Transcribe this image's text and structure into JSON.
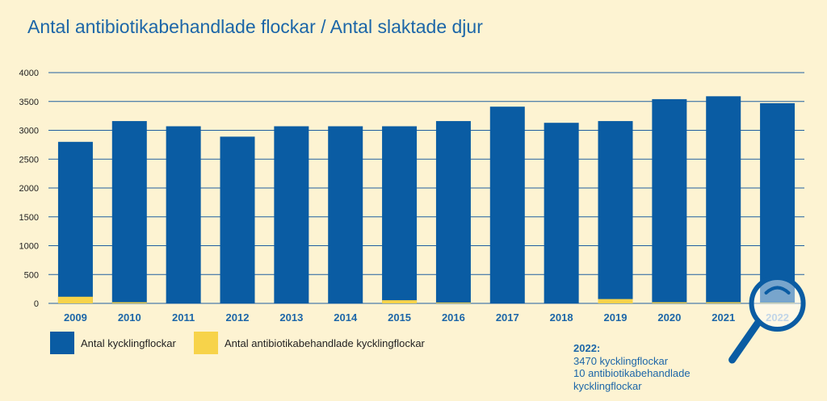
{
  "title": "Antal antibiotikabehandlade flockar / Antal slaktade djur",
  "colors": {
    "primary": "#0a5ca3",
    "secondary": "#f7d34a",
    "text_blue": "#1c66a8",
    "background": "#fdf3d2"
  },
  "chart_data": {
    "type": "bar",
    "stacked": true,
    "categories": [
      "2009",
      "2010",
      "2011",
      "2012",
      "2013",
      "2014",
      "2015",
      "2016",
      "2017",
      "2018",
      "2019",
      "2020",
      "2021",
      "2022"
    ],
    "series": [
      {
        "name": "Antal kycklingflockar",
        "color": "#0a5ca3",
        "values": [
          2800,
          3160,
          3070,
          2890,
          3070,
          3070,
          3070,
          3160,
          3410,
          3130,
          3160,
          3540,
          3590,
          3470
        ]
      },
      {
        "name": "Antal antibiotikabehandlade kycklingflockar",
        "color": "#f7d34a",
        "values": [
          115,
          20,
          0,
          0,
          0,
          0,
          55,
          15,
          0,
          0,
          75,
          20,
          20,
          10
        ]
      }
    ],
    "highlight": "2022",
    "ylim": [
      0,
      4000
    ],
    "yticks": [
      0,
      500,
      1000,
      1500,
      2000,
      2500,
      3000,
      3500,
      4000
    ],
    "grid": true,
    "legend_position": "bottom-left"
  },
  "annotation": {
    "heading": "2022:",
    "line1": "3470 kycklingflockar",
    "line2": "10 antibiotikabehandlade",
    "line3": "kycklingflockar"
  }
}
